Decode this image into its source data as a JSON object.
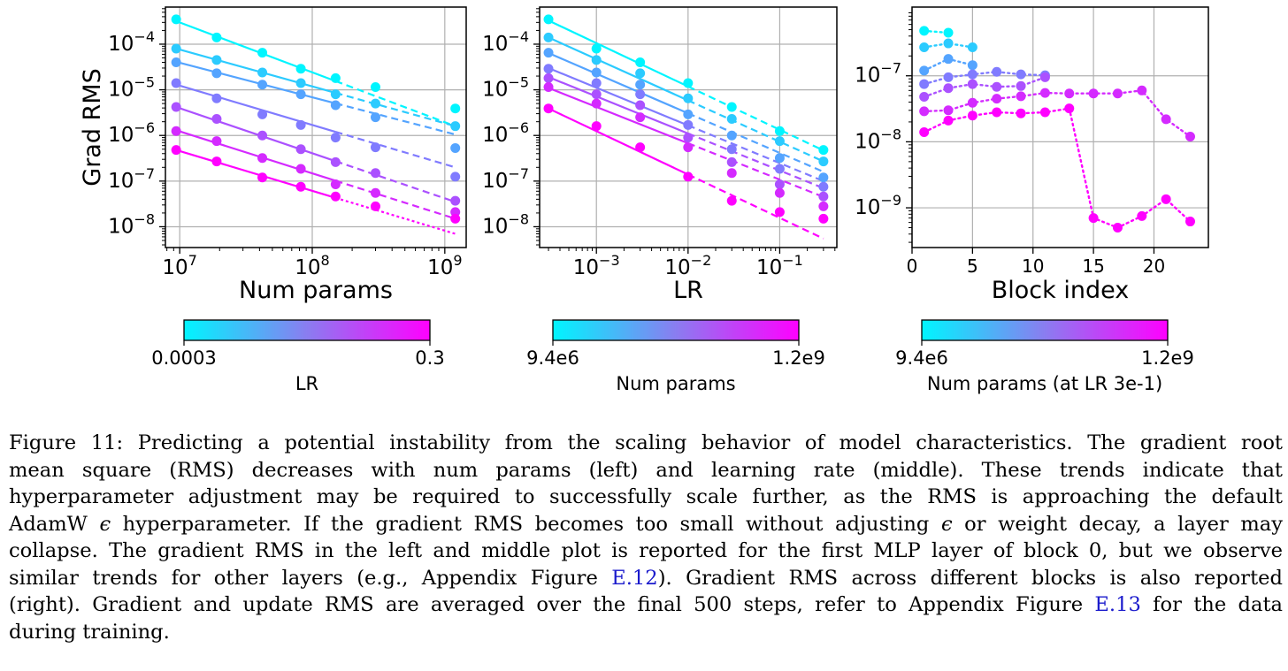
{
  "figure": {
    "colors": {
      "start": "#00f5ff",
      "end": "#ff00ff",
      "grid": "#b0b0b0"
    },
    "panels": [
      {
        "name": "grad-rms-vs-num-params",
        "xlabel": "Num params",
        "ylabel": "Grad RMS",
        "x_scale": "log",
        "y_scale": "log",
        "xlim": [
          7800000.0,
          1450000000.0
        ],
        "ylim": [
          3.5e-09,
          0.00065
        ],
        "x_ticks": [
          {
            "v": 10000000.0,
            "e": "7"
          },
          {
            "v": 100000000.0,
            "e": "8"
          },
          {
            "v": 1000000000.0,
            "e": "9"
          }
        ],
        "y_ticks": [
          {
            "v": 1e-08,
            "e": "−8"
          },
          {
            "v": 1e-07,
            "e": "−7"
          },
          {
            "v": 1e-06,
            "e": "−6"
          },
          {
            "v": 1e-05,
            "e": "−5"
          },
          {
            "v": 0.0001,
            "e": "−4"
          }
        ],
        "colorbar": {
          "min_label": "0.0003",
          "max_label": "0.3",
          "label": "LR"
        }
      },
      {
        "name": "grad-rms-vs-lr",
        "xlabel": "LR",
        "ylabel": "",
        "x_scale": "log",
        "y_scale": "log",
        "xlim": [
          0.00024,
          0.42
        ],
        "ylim": [
          3.5e-09,
          0.00065
        ],
        "x_ticks": [
          {
            "v": 0.001,
            "e": "−3"
          },
          {
            "v": 0.01,
            "e": "−2"
          },
          {
            "v": 0.1,
            "e": "−1"
          }
        ],
        "y_ticks": [
          {
            "v": 1e-08,
            "e": "−8"
          },
          {
            "v": 1e-07,
            "e": "−7"
          },
          {
            "v": 1e-06,
            "e": "−6"
          },
          {
            "v": 1e-05,
            "e": "−5"
          },
          {
            "v": 0.0001,
            "e": "−4"
          }
        ],
        "colorbar": {
          "min_label": "9.4e6",
          "max_label": "1.2e9",
          "label": "Num params"
        }
      },
      {
        "name": "grad-rms-vs-block-index",
        "xlabel": "Block index",
        "ylabel": "",
        "x_scale": "linear",
        "y_scale": "log",
        "xlim": [
          0,
          24.5
        ],
        "ylim": [
          2.5e-10,
          1.1e-06
        ],
        "x_ticks": [
          {
            "v": 0,
            "t": "0"
          },
          {
            "v": 5,
            "t": "5"
          },
          {
            "v": 10,
            "t": "10"
          },
          {
            "v": 15,
            "t": "15"
          },
          {
            "v": 20,
            "t": "20"
          }
        ],
        "y_ticks": [
          {
            "v": 1e-09,
            "e": "−9"
          },
          {
            "v": 1e-08,
            "e": "−8"
          },
          {
            "v": 1e-07,
            "e": "−7"
          }
        ],
        "colorbar": {
          "min_label": "9.4e6",
          "max_label": "1.2e9",
          "label": "Num params (at LR 3e-1)"
        }
      }
    ]
  },
  "chart_data": [
    {
      "type": "scatter",
      "xlabel": "Num params",
      "ylabel": "Grad RMS",
      "x_scale": "log",
      "y_scale": "log",
      "x": [
        9400000.0,
        19000000.0,
        42000000.0,
        82000000.0,
        150000000.0,
        300000000.0,
        1200000000.0
      ],
      "series": [
        {
          "values": [
            0.00035,
            0.00014,
            6.5e-05,
            2.9e-05,
            1.8e-05,
            1.15e-05,
            3.9e-06
          ],
          "color_t": 0.0
        },
        {
          "values": [
            8e-05,
            4.5e-05,
            2.4e-05,
            1.4e-05,
            8e-06,
            5e-06,
            1.6e-06
          ],
          "color_t": 0.17
        },
        {
          "values": [
            4e-05,
            2.3e-05,
            1.3e-05,
            8e-06,
            4.6e-06,
            2.5e-06,
            5.3e-07
          ],
          "color_t": 0.33
        },
        {
          "values": [
            1.4e-05,
            6.5e-06,
            2.9e-06,
            1.7e-06,
            9e-07,
            5.5e-07,
            1.25e-07
          ],
          "color_t": 0.5
        },
        {
          "values": [
            4.2e-06,
            2.3e-06,
            1e-06,
            5e-07,
            2.6e-07,
            1.5e-07,
            3.7e-08
          ],
          "color_t": 0.67
        },
        {
          "values": [
            1.25e-06,
            7.5e-07,
            3.2e-07,
            1.85e-07,
            8.5e-08,
            5.5e-08,
            2.1e-08
          ],
          "color_t": 0.83
        },
        {
          "values": [
            4.8e-07,
            2.7e-07,
            1.2e-07,
            7.5e-08,
            4.6e-08,
            2.8e-08,
            1.5e-08
          ],
          "color_t": 1.0
        }
      ],
      "fit_lines": [
        {
          "y0": 0.00032,
          "y1": 1.6e-06,
          "color_t": 0.0
        },
        {
          "y0": 8e-05,
          "y1": 1.6e-06,
          "color_t": 0.17
        },
        {
          "y0": 4.1e-05,
          "y1": 1.05e-06,
          "color_t": 0.33
        },
        {
          "y0": 1.3e-05,
          "y1": 2e-07,
          "color_t": 0.5
        },
        {
          "y0": 4.2e-06,
          "y1": 3.5e-08,
          "color_t": 0.67
        },
        {
          "y0": 1.3e-06,
          "y1": 1.5e-08,
          "color_t": 0.83
        },
        {
          "y0": 4.8e-07,
          "y1": 7e-09,
          "color_t": 1.0
        }
      ],
      "fit_x": [
        9400000.0,
        1200000000.0
      ],
      "fit_solid_until": 150000000.0,
      "colorbar": {
        "min": 0.0003,
        "max": 0.3,
        "label": "LR"
      }
    },
    {
      "type": "scatter",
      "xlabel": "LR",
      "ylabel": "Grad RMS",
      "x_scale": "log",
      "y_scale": "log",
      "x": [
        0.0003,
        0.001,
        0.003,
        0.01,
        0.03,
        0.1,
        0.3
      ],
      "series": [
        {
          "values": [
            0.00035,
            8e-05,
            4e-05,
            1.4e-05,
            4.2e-06,
            1.25e-06,
            4.8e-07
          ],
          "color_t": 0.0
        },
        {
          "values": [
            0.00014,
            4.5e-05,
            2.3e-05,
            6.5e-06,
            2.3e-06,
            7.5e-07,
            2.7e-07
          ],
          "color_t": 0.17
        },
        {
          "values": [
            6.5e-05,
            2.4e-05,
            1.3e-05,
            2.9e-06,
            1e-06,
            3.2e-07,
            1.2e-07
          ],
          "color_t": 0.33
        },
        {
          "values": [
            2.9e-05,
            1.4e-05,
            8e-06,
            1.7e-06,
            5e-07,
            1.85e-07,
            7.5e-08
          ],
          "color_t": 0.5
        },
        {
          "values": [
            1.8e-05,
            8e-06,
            4.6e-06,
            9e-07,
            2.6e-07,
            8.5e-08,
            4.6e-08
          ],
          "color_t": 0.67
        },
        {
          "values": [
            1.15e-05,
            5e-06,
            2.5e-06,
            5.5e-07,
            1.5e-07,
            5.5e-08,
            2.8e-08
          ],
          "color_t": 0.83
        },
        {
          "values": [
            3.9e-06,
            1.6e-06,
            5.5e-07,
            1.25e-07,
            3.7e-08,
            2.1e-08,
            1.5e-08
          ],
          "color_t": 1.0
        }
      ],
      "fit_lines": [
        {
          "y0": 0.00033,
          "y1": 4.7e-07,
          "color_t": 0.0
        },
        {
          "y0": 0.00014,
          "y1": 2.7e-07,
          "color_t": 0.17
        },
        {
          "y0": 6.4e-05,
          "y1": 1.6e-07,
          "color_t": 0.33
        },
        {
          "y0": 3e-05,
          "y1": 1e-07,
          "color_t": 0.5
        },
        {
          "y0": 1.9e-05,
          "y1": 7e-08,
          "color_t": 0.67
        },
        {
          "y0": 1.1e-05,
          "y1": 4.5e-08,
          "color_t": 0.83
        },
        {
          "y0": 3.9e-06,
          "y1": 5.5e-09,
          "color_t": 1.0
        }
      ],
      "fit_x": [
        0.0003,
        0.3
      ],
      "fit_solid_until": 0.01,
      "colorbar": {
        "min": 9400000.0,
        "max": 1200000000.0,
        "label": "Num params"
      }
    },
    {
      "type": "line",
      "xlabel": "Block index",
      "ylabel": "Grad RMS",
      "x_scale": "linear",
      "y_scale": "log",
      "line_style": "dotted",
      "series": [
        {
          "x": [
            1,
            3
          ],
          "values": [
            4.8e-07,
            4.5e-07
          ],
          "color_t": 0.0
        },
        {
          "x": [
            1,
            3,
            5
          ],
          "values": [
            2.7e-07,
            3.1e-07,
            2.7e-07
          ],
          "color_t": 0.17
        },
        {
          "x": [
            1,
            3,
            5
          ],
          "values": [
            1.2e-07,
            1.8e-07,
            1.45e-07
          ],
          "color_t": 0.33
        },
        {
          "x": [
            1,
            3,
            5,
            7,
            9,
            11
          ],
          "values": [
            7.5e-08,
            9.5e-08,
            1.05e-07,
            1.15e-07,
            1.05e-07,
            1.02e-07
          ],
          "color_t": 0.5
        },
        {
          "x": [
            1,
            3,
            5,
            7,
            9,
            11
          ],
          "values": [
            4.8e-08,
            6.5e-08,
            7.5e-08,
            6.8e-08,
            7e-08,
            9.5e-08
          ],
          "color_t": 0.67
        },
        {
          "x": [
            1,
            3,
            5,
            7,
            9,
            11,
            13,
            15,
            17,
            19,
            21,
            23
          ],
          "values": [
            2.9e-08,
            3e-08,
            3.9e-08,
            4.5e-08,
            4.9e-08,
            5.5e-08,
            5.4e-08,
            5.4e-08,
            5.4e-08,
            6e-08,
            2.2e-08,
            1.2e-08
          ],
          "color_t": 0.83
        },
        {
          "x": [
            1,
            3,
            5,
            7,
            9,
            11,
            13,
            15,
            17,
            19,
            21,
            23
          ],
          "values": [
            1.4e-08,
            2.1e-08,
            2.5e-08,
            2.8e-08,
            2.7e-08,
            2.8e-08,
            3.2e-08,
            7e-10,
            5e-10,
            7.5e-10,
            1.35e-09,
            6.2e-10
          ],
          "color_t": 1.0
        }
      ],
      "colorbar": {
        "min": 9400000.0,
        "max": 1200000000.0,
        "label": "Num params (at LR 3e-1)"
      }
    }
  ],
  "caption": {
    "lines": [
      [
        {
          "t": "Figure 11: Predicting a potential instability from the scaling behavior of model characteristics. The gradient root"
        }
      ],
      [
        {
          "t": "mean square (RMS) decreases with num params (left) and learning rate (middle).  These trends indicate that"
        }
      ],
      [
        {
          "t": "hyperparameter adjustment may be required to successfully scale further, as the RMS is approaching the default"
        }
      ],
      [
        {
          "t": "AdamW "
        },
        {
          "t": "ϵ",
          "c": "eps"
        },
        {
          "t": " hyperparameter. If the gradient RMS becomes too small without adjusting "
        },
        {
          "t": "ϵ",
          "c": "eps"
        },
        {
          "t": " or weight decay, a layer may"
        }
      ],
      [
        {
          "t": "collapse. The gradient RMS in the left and middle plot is reported for the first MLP layer of block 0, but we observe"
        }
      ],
      [
        {
          "t": "similar trends for other layers (e.g., Appendix Figure "
        },
        {
          "t": "E.12",
          "c": "link"
        },
        {
          "t": "). Gradient RMS across different blocks is also reported"
        }
      ],
      [
        {
          "t": "(right). Gradient and update RMS are averaged over the final 500 steps, refer to Appendix Figure "
        },
        {
          "t": "E.13",
          "c": "link"
        },
        {
          "t": " for the data"
        }
      ],
      [
        {
          "t": "during training."
        }
      ]
    ]
  }
}
